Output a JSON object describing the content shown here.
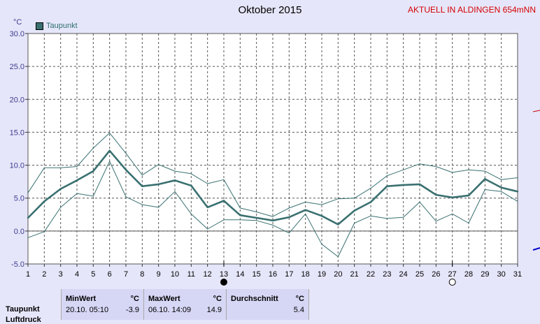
{
  "header": {
    "title": "Oktober 2015",
    "station": "AKTUELL IN ALDINGEN 654mNN",
    "unit": "°C"
  },
  "chart_data": {
    "type": "line",
    "title": "Oktober 2015",
    "ylabel": "°C",
    "ylim": [
      -5,
      30
    ],
    "yticks": [
      "30.0",
      "25.0",
      "20.0",
      "15.0",
      "10.0",
      "5.0",
      "0.0",
      "-5.0"
    ],
    "x": [
      1,
      2,
      3,
      4,
      5,
      6,
      7,
      8,
      9,
      10,
      11,
      12,
      13,
      14,
      15,
      16,
      17,
      18,
      19,
      20,
      21,
      22,
      23,
      24,
      25,
      26,
      27,
      28,
      29,
      30,
      31
    ],
    "grid": true,
    "legend_position": "top-left",
    "series": [
      {
        "name": "Taupunkt",
        "role": "mean",
        "values": [
          2.0,
          4.5,
          6.4,
          7.7,
          9.1,
          12.2,
          9.3,
          6.8,
          7.1,
          7.7,
          6.9,
          3.6,
          4.6,
          2.4,
          2.0,
          1.6,
          2.1,
          3.2,
          2.3,
          1.0,
          3.1,
          4.4,
          6.8,
          7.0,
          7.1,
          5.5,
          5.1,
          5.4,
          7.9,
          6.6,
          6.0
        ]
      },
      {
        "role": "max",
        "values": [
          5.8,
          9.6,
          9.6,
          9.8,
          12.6,
          14.9,
          11.8,
          8.5,
          10.1,
          9.1,
          8.7,
          7.2,
          7.8,
          3.5,
          2.9,
          2.2,
          3.5,
          4.4,
          4.0,
          4.9,
          5.0,
          6.5,
          8.4,
          9.3,
          10.2,
          9.8,
          8.9,
          9.3,
          9.1,
          7.8,
          8.1
        ]
      },
      {
        "role": "min",
        "values": [
          -1.0,
          -0.1,
          3.6,
          5.7,
          5.3,
          10.6,
          5.2,
          4.0,
          3.6,
          6.0,
          2.6,
          0.3,
          1.7,
          1.7,
          1.6,
          0.9,
          -0.3,
          2.6,
          -2.0,
          -3.9,
          1.2,
          2.3,
          1.9,
          2.1,
          4.4,
          1.5,
          2.6,
          1.2,
          6.3,
          6.0,
          4.5
        ]
      }
    ],
    "markers": [
      {
        "day": 13,
        "symbol": "full-moon-icon"
      },
      {
        "day": 27,
        "symbol": "new-moon-icon"
      }
    ]
  },
  "legend": {
    "label": "Taupunkt"
  },
  "stats": {
    "row_label": "Taupunkt",
    "row_label_next": "Luftdruck",
    "min": {
      "header": "MinWert",
      "unit": "°C",
      "date": "20.10.  05:10",
      "value": "-3.9"
    },
    "max": {
      "header": "MaxWert",
      "unit": "°C",
      "date": "06.10.  14:09",
      "value": "14.9"
    },
    "avg": {
      "header": "Durchschnitt",
      "unit": "°C",
      "value": "5.4"
    }
  },
  "colors": {
    "mean_line": "#3a7070",
    "band_line": "#3a7070",
    "grid": "#555555",
    "background": "#e6e6fa",
    "plot_bg": "#ffffff"
  }
}
